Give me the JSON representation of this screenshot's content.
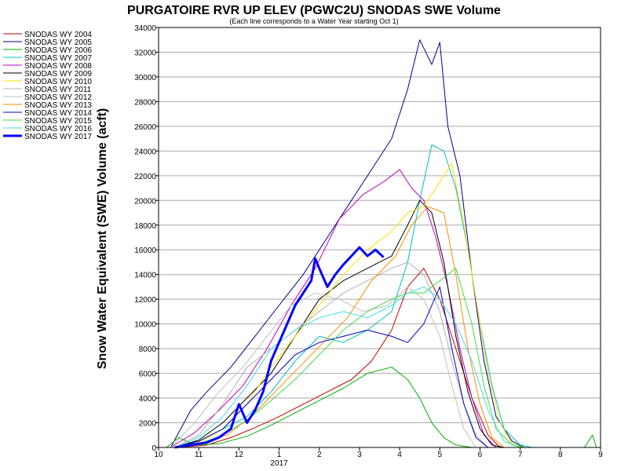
{
  "chart_data": {
    "type": "line",
    "title": "PURGATOIRE RVR UP ELEV (PGWC2U) SNODAS SWE Volume",
    "subtitle": "(Each line corresponds to a Water Year starting Oct 1)",
    "xlabel": "",
    "ylabel": "Snow Water Equivalent (SWE) Volume (acft)",
    "ylim": [
      0,
      34000
    ],
    "yticks": [
      0,
      2000,
      4000,
      6000,
      8000,
      10000,
      12000,
      14000,
      16000,
      18000,
      20000,
      22000,
      24000,
      26000,
      28000,
      30000,
      32000,
      34000
    ],
    "xlim": [
      10,
      21
    ],
    "xticks": [
      {
        "value": 10,
        "label": "10"
      },
      {
        "value": 11,
        "label": "11"
      },
      {
        "value": 12,
        "label": "12"
      },
      {
        "value": 13,
        "label": "1"
      },
      {
        "value": 14,
        "label": "2"
      },
      {
        "value": 15,
        "label": "3"
      },
      {
        "value": 16,
        "label": "4"
      },
      {
        "value": 17,
        "label": "5"
      },
      {
        "value": 18,
        "label": "6"
      },
      {
        "value": 19,
        "label": "7"
      },
      {
        "value": 20,
        "label": "8"
      },
      {
        "value": 21,
        "label": "9"
      }
    ],
    "year_label": "2017",
    "grid": "horizontal",
    "legend_position": "left",
    "series": [
      {
        "name": "SNODAS WY 2004",
        "color": "#c00000",
        "width": 1,
        "x": [
          10.5,
          11.2,
          11.8,
          12.4,
          13.0,
          13.6,
          14.2,
          14.8,
          15.3,
          15.8,
          16.2,
          16.6,
          17.0,
          17.4,
          17.8,
          18.2,
          18.5
        ],
        "y": [
          0,
          200,
          800,
          1600,
          2500,
          3500,
          4500,
          5500,
          7000,
          9500,
          13000,
          14500,
          12000,
          8000,
          4000,
          1000,
          0
        ]
      },
      {
        "name": "SNODAS WY 2005",
        "color": "#00008b",
        "width": 1,
        "x": [
          10.3,
          10.8,
          11.2,
          11.8,
          12.4,
          13.0,
          13.6,
          14.2,
          14.8,
          15.3,
          15.8,
          16.2,
          16.5,
          16.8,
          17.0,
          17.2,
          17.5,
          17.8,
          18.1,
          18.4,
          18.8,
          19.1
        ],
        "y": [
          0,
          3000,
          4500,
          6500,
          9000,
          11500,
          14000,
          17000,
          20000,
          22500,
          25000,
          29000,
          33000,
          31000,
          32800,
          26000,
          22000,
          14000,
          7000,
          2500,
          500,
          0
        ]
      },
      {
        "name": "SNODAS WY 2006",
        "color": "#00b000",
        "width": 1,
        "x": [
          10.2,
          10.5,
          10.9,
          11.5,
          12.2,
          12.8,
          13.4,
          14.0,
          14.6,
          15.2,
          15.8,
          16.2,
          16.5,
          16.8,
          17.1,
          17.4,
          17.8,
          18.1,
          20.6,
          20.8,
          20.9
        ],
        "y": [
          0,
          800,
          200,
          300,
          900,
          1800,
          2800,
          3800,
          4800,
          6000,
          6500,
          5500,
          4000,
          2000,
          800,
          200,
          0,
          0,
          0,
          1000,
          0
        ]
      },
      {
        "name": "SNODAS WY 2007",
        "color": "#00c0c0",
        "width": 1,
        "x": [
          10.4,
          11.0,
          11.6,
          12.2,
          12.8,
          13.4,
          14.0,
          14.6,
          15.2,
          15.8,
          16.2,
          16.5,
          16.8,
          17.1,
          17.4,
          17.7,
          18.0,
          18.3,
          18.6,
          19.0,
          19.3
        ],
        "y": [
          0,
          500,
          1500,
          2500,
          4500,
          7000,
          9000,
          8500,
          9500,
          11000,
          15000,
          20000,
          24500,
          24000,
          21000,
          16000,
          10000,
          5000,
          1500,
          200,
          0
        ]
      },
      {
        "name": "SNODAS WY 2008",
        "color": "#c000c0",
        "width": 1,
        "x": [
          10.3,
          10.9,
          11.5,
          12.1,
          12.7,
          13.3,
          13.9,
          14.5,
          15.1,
          15.6,
          16.0,
          16.3,
          16.6,
          16.9,
          17.2,
          17.5,
          17.8,
          18.1,
          18.4
        ],
        "y": [
          0,
          1200,
          3000,
          5000,
          8000,
          11500,
          14500,
          18500,
          20500,
          21500,
          22500,
          21000,
          20000,
          17000,
          13000,
          8000,
          4000,
          1000,
          0
        ]
      },
      {
        "name": "SNODAS WY 2009",
        "color": "#000000",
        "width": 1,
        "x": [
          10.4,
          11.0,
          11.6,
          12.2,
          12.8,
          13.4,
          14.0,
          14.6,
          15.2,
          15.8,
          16.2,
          16.5,
          16.8,
          17.1,
          17.4,
          17.7,
          18.0,
          18.3,
          18.6
        ],
        "y": [
          0,
          600,
          2000,
          4000,
          6000,
          9000,
          12000,
          13500,
          14500,
          15500,
          18000,
          20000,
          19000,
          15000,
          9000,
          4500,
          1500,
          200,
          0
        ]
      },
      {
        "name": "SNODAS WY 2010",
        "color": "#ffdd00",
        "width": 1,
        "x": [
          10.4,
          11.0,
          11.6,
          12.2,
          12.8,
          13.4,
          14.0,
          14.6,
          15.2,
          15.8,
          16.2,
          16.6,
          17.0,
          17.3,
          17.6,
          17.9,
          18.2,
          18.5,
          18.8,
          19.1
        ],
        "y": [
          0,
          400,
          1500,
          3500,
          6500,
          9000,
          11500,
          14000,
          16000,
          17500,
          19000,
          19500,
          21500,
          23000,
          18000,
          12000,
          6000,
          2000,
          300,
          0
        ]
      },
      {
        "name": "SNODAS WY 2011",
        "color": "#b0b0b0",
        "width": 1,
        "x": [
          10.4,
          11.0,
          11.6,
          12.2,
          12.8,
          13.4,
          14.0,
          14.6,
          15.2,
          15.8,
          16.2,
          16.6,
          17.0,
          17.3,
          17.6,
          17.9,
          18.2
        ],
        "y": [
          0,
          1000,
          3500,
          6500,
          8000,
          9500,
          11000,
          12500,
          13500,
          14500,
          15000,
          14000,
          11000,
          7000,
          3500,
          1000,
          0
        ]
      },
      {
        "name": "SNODAS WY 2012",
        "color": "#c0c0c0",
        "width": 1,
        "x": [
          10.3,
          10.9,
          11.5,
          12.1,
          12.7,
          13.3,
          13.9,
          14.5,
          15.1,
          15.7,
          16.2,
          16.6,
          17.0,
          17.3,
          17.6,
          17.9
        ],
        "y": [
          0,
          2000,
          4500,
          6500,
          9000,
          11500,
          12500,
          12000,
          11000,
          11500,
          13000,
          12000,
          9000,
          5000,
          1500,
          0
        ]
      },
      {
        "name": "SNODAS WY 2013",
        "color": "#ff8c00",
        "width": 1,
        "x": [
          10.5,
          11.1,
          11.7,
          12.3,
          12.9,
          13.5,
          14.1,
          14.7,
          15.3,
          15.9,
          16.3,
          16.7,
          17.1,
          17.4,
          17.7,
          18.0,
          18.3,
          18.6
        ],
        "y": [
          0,
          300,
          1000,
          2500,
          4500,
          6500,
          8500,
          10500,
          13500,
          15500,
          18000,
          19500,
          19000,
          14000,
          8000,
          3500,
          800,
          0
        ]
      },
      {
        "name": "SNODAS WY 2014",
        "color": "#0000c0",
        "width": 1,
        "x": [
          10.4,
          11.0,
          11.6,
          12.2,
          12.8,
          13.4,
          14.0,
          14.6,
          15.2,
          15.8,
          16.2,
          16.6,
          17.0,
          17.3,
          17.6,
          17.9,
          18.2
        ],
        "y": [
          0,
          500,
          1500,
          3500,
          5500,
          7500,
          8500,
          9000,
          9500,
          9000,
          8500,
          10000,
          13000,
          8000,
          3500,
          800,
          0
        ]
      },
      {
        "name": "SNODAS WY 2015",
        "color": "#44dd44",
        "width": 1,
        "x": [
          10.4,
          11.0,
          11.6,
          12.2,
          12.8,
          13.4,
          14.0,
          14.6,
          15.2,
          15.8,
          16.2,
          16.6,
          17.0,
          17.4,
          17.8,
          18.1,
          18.4,
          18.8,
          19.1
        ],
        "y": [
          0,
          300,
          1000,
          2200,
          3800,
          5500,
          7500,
          9500,
          11000,
          12000,
          12500,
          12500,
          13500,
          14500,
          10000,
          5000,
          1500,
          200,
          0
        ]
      },
      {
        "name": "SNODAS WY 2016",
        "color": "#40e0e0",
        "width": 1,
        "x": [
          10.4,
          11.0,
          11.6,
          12.2,
          12.8,
          13.4,
          14.0,
          14.6,
          15.2,
          15.8,
          16.2,
          16.6,
          17.0,
          17.4,
          17.8,
          18.2,
          18.6,
          19.0
        ],
        "y": [
          0,
          800,
          2500,
          5000,
          8000,
          9500,
          10500,
          11000,
          10500,
          11500,
          12500,
          13000,
          12000,
          10000,
          7000,
          3000,
          500,
          0
        ]
      },
      {
        "name": "SNODAS WY 2017",
        "color": "#0000ff",
        "width": 3,
        "x": [
          10.4,
          10.8,
          11.2,
          11.5,
          11.8,
          12.0,
          12.2,
          12.4,
          12.6,
          12.8,
          13.0,
          13.2,
          13.4,
          13.6,
          13.8,
          13.9,
          14.0,
          14.2,
          14.4,
          14.6,
          14.8,
          15.0,
          15.2,
          15.4,
          15.6
        ],
        "y": [
          0,
          200,
          400,
          800,
          1500,
          3500,
          2000,
          3000,
          4500,
          7000,
          8500,
          10000,
          11500,
          12500,
          13500,
          15300,
          14500,
          13000,
          14000,
          14800,
          15500,
          16200,
          15500,
          16000,
          15400
        ]
      }
    ]
  }
}
